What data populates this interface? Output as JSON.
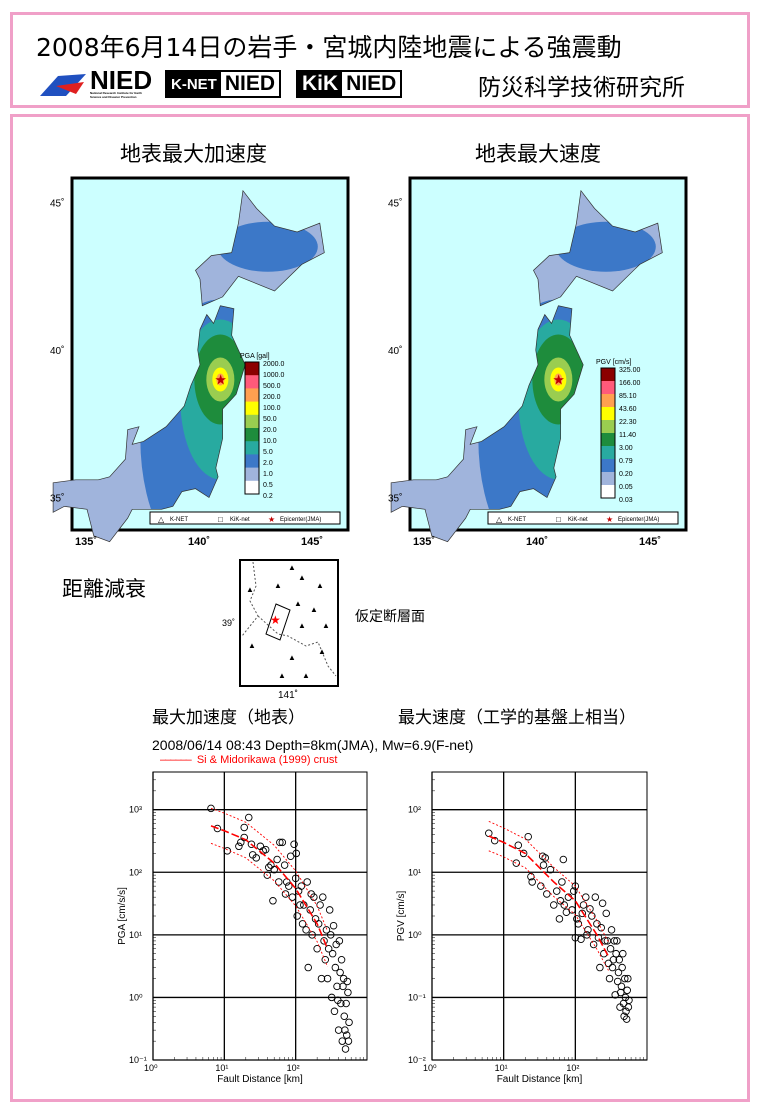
{
  "header": {
    "title": "2008年6月14日の岩手・宮城内陸地震による強震動",
    "institute": "防災科学技術研究所",
    "logos": {
      "nied": "NIED",
      "nied_sub": "National Research Institute for Earth Science and Disaster Prevention",
      "knet_prefix": "K-NET",
      "knet_suffix": "NIED",
      "kik_prefix": "KiK",
      "kik_suffix": "NIED"
    }
  },
  "maps": [
    {
      "title": "地表最大加速度",
      "legend_title": "PGA [gal]",
      "legend_labels": [
        "2000.0",
        "1000.0",
        "500.0",
        "200.0",
        "100.0",
        "50.0",
        "20.0",
        "10.0",
        "5.0",
        "2.0",
        "1.0",
        "0.5",
        "0.2"
      ],
      "lat_labels": [
        "45˚",
        "40˚",
        "35˚"
      ],
      "lon_labels": [
        "135˚",
        "140˚",
        "145˚"
      ],
      "key": [
        "K-NET",
        "KiK-net",
        "Epicenter(JMA)"
      ]
    },
    {
      "title": "地表最大速度",
      "legend_title": "PGV [cm/s]",
      "legend_labels": [
        "325.00",
        "166.00",
        "85.10",
        "43.60",
        "22.30",
        "11.40",
        "3.00",
        "0.79",
        "0.20",
        "0.05",
        "0.03"
      ],
      "lat_labels": [
        "45˚",
        "40˚",
        "35˚"
      ],
      "lon_labels": [
        "135˚",
        "140˚",
        "145˚"
      ],
      "key": [
        "K-NET",
        "KiK-net",
        "Epicenter(JMA)"
      ]
    }
  ],
  "colors": {
    "border": "#f0a0c8",
    "sea": "#ccffff",
    "scale": [
      "#8b0000",
      "#ff5a7a",
      "#ffa050",
      "#ffff00",
      "#9acd50",
      "#1e8c3c",
      "#28aaa0",
      "#3c78c8",
      "#a0b4dc",
      "#ffffff"
    ],
    "model_curve": "#ff0000"
  },
  "attenuation": {
    "section_title": "距離減衰",
    "inset_label": "仮定断層面",
    "inset_lat": "39˚",
    "inset_lon": "141˚",
    "pga_title": "最大加速度（地表）",
    "pgv_title": "最大速度（工学的基盤上相当）",
    "event_info": "2008/06/14 08:43 Depth=8km(JMA), Mw=6.9(F-net)",
    "model_legend": "Si & Midorikawa (1999)  crust"
  },
  "chart_data": [
    {
      "type": "scatter",
      "xlabel": "Fault Distance [km]",
      "ylabel": "PGA [cm/s/s]",
      "xscale": "log",
      "yscale": "log",
      "xlim": [
        1,
        1000
      ],
      "ylim": [
        0.1,
        4000
      ],
      "grid": true,
      "x_ticks": [
        "10⁰",
        "10¹",
        "10²"
      ],
      "y_ticks": [
        "10⁻¹",
        "10⁰",
        "10¹",
        "10²",
        "10³"
      ],
      "points": [
        [
          6.5,
          1050
        ],
        [
          8,
          500
        ],
        [
          11,
          220
        ],
        [
          16,
          260
        ],
        [
          17,
          300
        ],
        [
          19,
          520
        ],
        [
          19,
          360
        ],
        [
          22,
          750
        ],
        [
          24,
          280
        ],
        [
          25,
          190
        ],
        [
          28,
          170
        ],
        [
          32,
          260
        ],
        [
          35,
          220
        ],
        [
          38,
          230
        ],
        [
          40,
          90
        ],
        [
          42,
          120
        ],
        [
          45,
          130
        ],
        [
          48,
          35
        ],
        [
          50,
          110
        ],
        [
          55,
          160
        ],
        [
          58,
          70
        ],
        [
          60,
          300
        ],
        [
          65,
          300
        ],
        [
          70,
          130
        ],
        [
          72,
          45
        ],
        [
          75,
          70
        ],
        [
          80,
          60
        ],
        [
          85,
          180
        ],
        [
          90,
          40
        ],
        [
          95,
          280
        ],
        [
          100,
          80
        ],
        [
          102,
          200
        ],
        [
          105,
          20
        ],
        [
          110,
          50
        ],
        [
          115,
          30
        ],
        [
          120,
          60
        ],
        [
          125,
          15
        ],
        [
          130,
          30
        ],
        [
          140,
          12
        ],
        [
          145,
          70
        ],
        [
          150,
          3
        ],
        [
          160,
          25
        ],
        [
          165,
          45
        ],
        [
          170,
          10
        ],
        [
          180,
          40
        ],
        [
          190,
          18
        ],
        [
          200,
          6
        ],
        [
          210,
          15
        ],
        [
          220,
          30
        ],
        [
          230,
          2
        ],
        [
          240,
          40
        ],
        [
          250,
          8
        ],
        [
          260,
          4
        ],
        [
          270,
          12
        ],
        [
          280,
          2
        ],
        [
          290,
          6
        ],
        [
          300,
          25
        ],
        [
          310,
          10
        ],
        [
          320,
          1
        ],
        [
          330,
          5
        ],
        [
          340,
          14
        ],
        [
          350,
          0.6
        ],
        [
          360,
          3
        ],
        [
          370,
          7
        ],
        [
          380,
          1.5
        ],
        [
          390,
          0.9
        ],
        [
          400,
          0.3
        ],
        [
          410,
          8
        ],
        [
          420,
          2.5
        ],
        [
          430,
          0.8
        ],
        [
          440,
          4
        ],
        [
          450,
          0.2
        ],
        [
          460,
          1.5
        ],
        [
          470,
          2
        ],
        [
          480,
          0.5
        ],
        [
          490,
          0.3
        ],
        [
          500,
          0.15
        ],
        [
          510,
          0.8
        ],
        [
          520,
          0.25
        ],
        [
          530,
          1.8
        ],
        [
          540,
          1.2
        ],
        [
          550,
          0.2
        ],
        [
          560,
          0.4
        ]
      ],
      "series": [
        {
          "style": "median",
          "x": [
            6.5,
            10,
            20,
            50,
            100,
            200,
            280
          ],
          "values": [
            550,
            460,
            330,
            140,
            55,
            15,
            6
          ]
        },
        {
          "style": "upper",
          "x": [
            6.5,
            10,
            20,
            50,
            100,
            200,
            280
          ],
          "values": [
            1050,
            880,
            630,
            270,
            105,
            29,
            11.5
          ]
        },
        {
          "style": "lower",
          "x": [
            6.5,
            10,
            20,
            50,
            100,
            200,
            280
          ],
          "values": [
            290,
            240,
            170,
            73,
            29,
            7.8,
            3.1
          ]
        }
      ]
    },
    {
      "type": "scatter",
      "xlabel": "Fault Distance [km]",
      "ylabel": "PGV [cm/s]",
      "xscale": "log",
      "yscale": "log",
      "xlim": [
        1,
        1000
      ],
      "ylim": [
        0.01,
        400
      ],
      "grid": true,
      "x_ticks": [
        "10⁰",
        "10¹",
        "10²"
      ],
      "y_ticks": [
        "10⁻²",
        "10⁻¹",
        "10⁰",
        "10¹",
        "10²"
      ],
      "points": [
        [
          6.2,
          42
        ],
        [
          7.5,
          32
        ],
        [
          15,
          14
        ],
        [
          16,
          27
        ],
        [
          19,
          20
        ],
        [
          22,
          37
        ],
        [
          24,
          8.5
        ],
        [
          25,
          7
        ],
        [
          33,
          6
        ],
        [
          35,
          18
        ],
        [
          36,
          13
        ],
        [
          38,
          17
        ],
        [
          40,
          4.5
        ],
        [
          45,
          11
        ],
        [
          50,
          3
        ],
        [
          55,
          5
        ],
        [
          60,
          1.8
        ],
        [
          62,
          3.5
        ],
        [
          65,
          7
        ],
        [
          68,
          16
        ],
        [
          70,
          3
        ],
        [
          75,
          2.3
        ],
        [
          80,
          4
        ],
        [
          90,
          2.5
        ],
        [
          95,
          5
        ],
        [
          100,
          6
        ],
        [
          100,
          0.9
        ],
        [
          105,
          1.8
        ],
        [
          110,
          1.5
        ],
        [
          120,
          0.85
        ],
        [
          125,
          2.2
        ],
        [
          130,
          3
        ],
        [
          140,
          4
        ],
        [
          145,
          1
        ],
        [
          150,
          1.2
        ],
        [
          160,
          2.6
        ],
        [
          170,
          2
        ],
        [
          180,
          0.7
        ],
        [
          190,
          4
        ],
        [
          200,
          1.5
        ],
        [
          210,
          0.9
        ],
        [
          220,
          0.3
        ],
        [
          230,
          1.3
        ],
        [
          240,
          3.2
        ],
        [
          250,
          0.5
        ],
        [
          260,
          0.8
        ],
        [
          270,
          2.2
        ],
        [
          280,
          0.8
        ],
        [
          290,
          0.35
        ],
        [
          300,
          0.2
        ],
        [
          310,
          0.6
        ],
        [
          320,
          1.2
        ],
        [
          330,
          0.3
        ],
        [
          340,
          0.4
        ],
        [
          350,
          0.8
        ],
        [
          360,
          0.11
        ],
        [
          370,
          0.5
        ],
        [
          380,
          0.8
        ],
        [
          390,
          0.18
        ],
        [
          400,
          0.25
        ],
        [
          410,
          0.4
        ],
        [
          420,
          0.07
        ],
        [
          430,
          0.12
        ],
        [
          440,
          0.15
        ],
        [
          450,
          0.3
        ],
        [
          460,
          0.5
        ],
        [
          470,
          0.08
        ],
        [
          480,
          0.05
        ],
        [
          490,
          0.2
        ],
        [
          500,
          0.1
        ],
        [
          510,
          0.06
        ],
        [
          520,
          0.045
        ],
        [
          530,
          0.13
        ],
        [
          540,
          0.2
        ],
        [
          550,
          0.07
        ],
        [
          560,
          0.09
        ]
      ],
      "series": [
        {
          "style": "median",
          "x": [
            6.2,
            10,
            20,
            50,
            100,
            200,
            290
          ],
          "values": [
            38,
            30,
            20,
            7,
            3.5,
            1,
            0.45
          ]
        },
        {
          "style": "upper",
          "x": [
            6.2,
            10,
            20,
            50,
            100,
            200,
            290
          ],
          "values": [
            65,
            51,
            34,
            12,
            6,
            1.7,
            0.77
          ]
        },
        {
          "style": "lower",
          "x": [
            6.2,
            10,
            20,
            50,
            100,
            200,
            290
          ],
          "values": [
            22,
            17.6,
            11.8,
            4.1,
            2.1,
            0.59,
            0.27
          ]
        }
      ]
    }
  ]
}
